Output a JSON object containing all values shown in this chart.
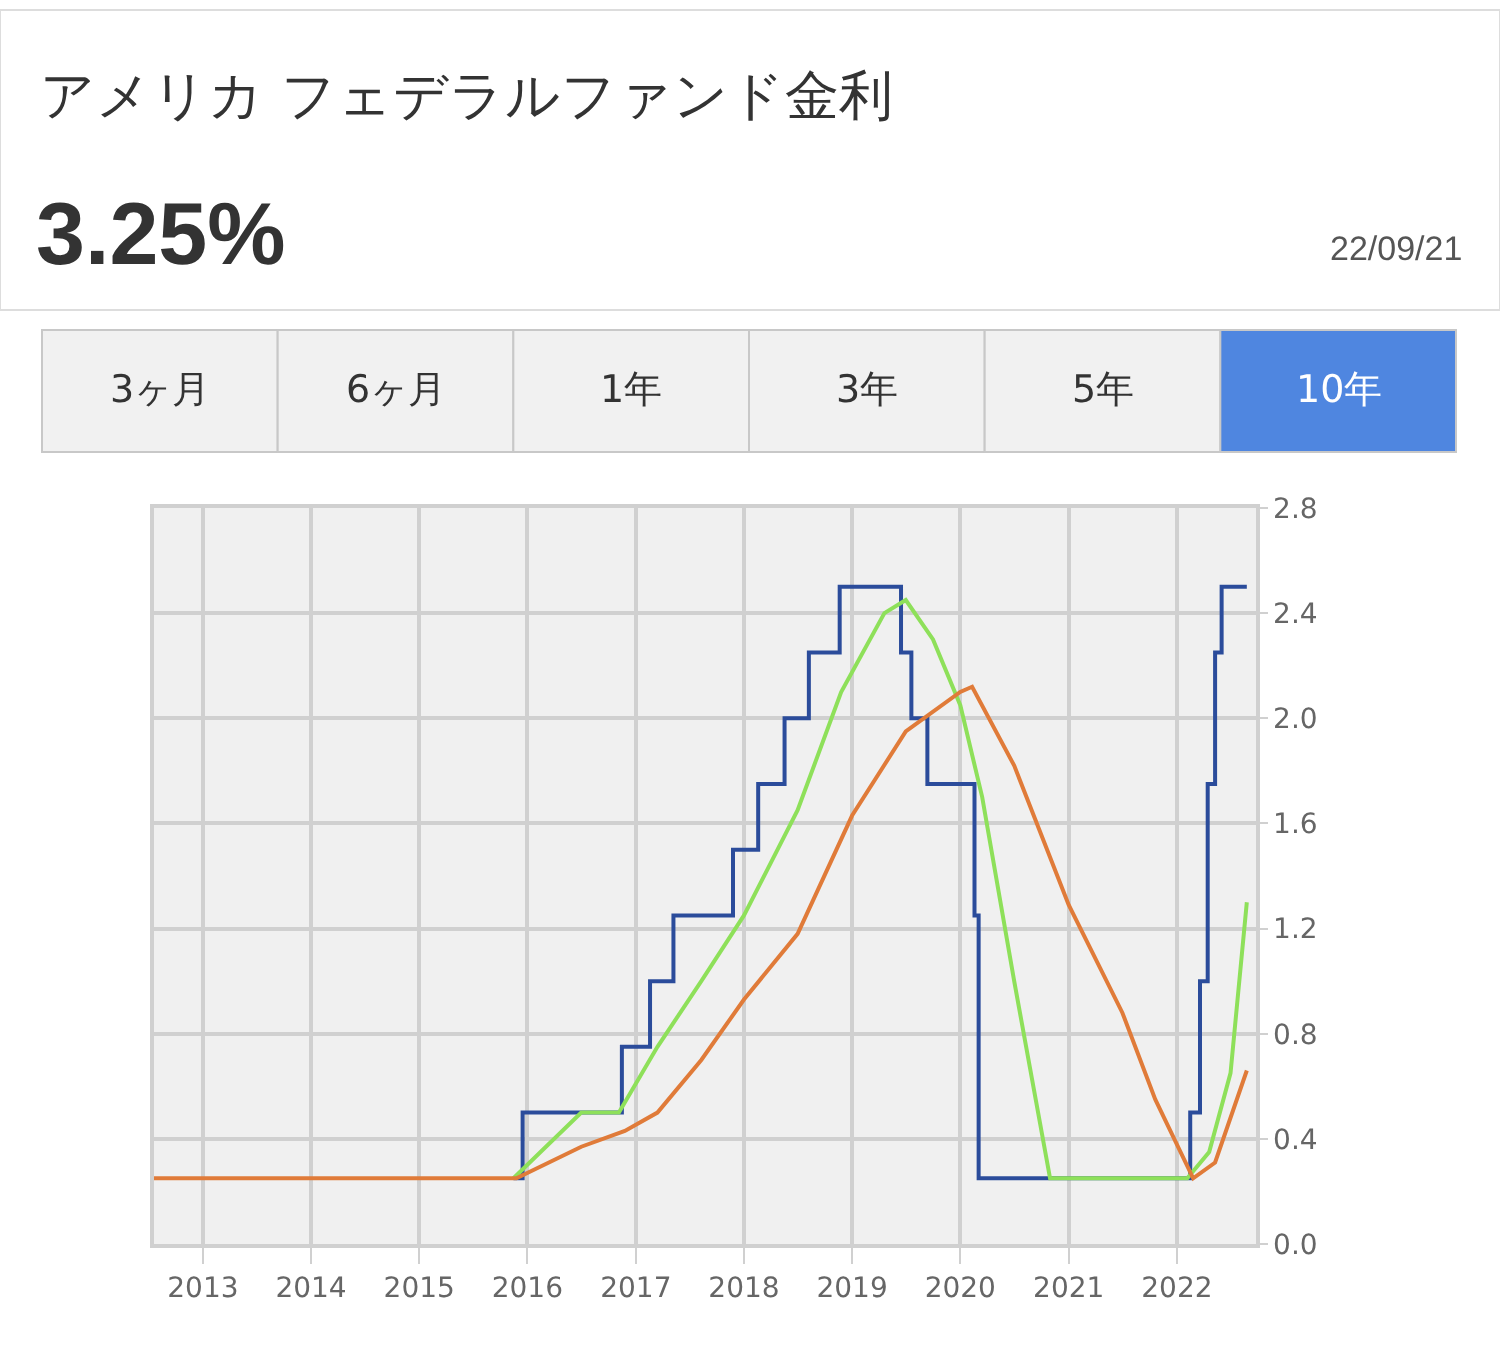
{
  "chart_data": {
    "type": "line",
    "title": "アメリカ フェデラルファンド金利",
    "subtitle": "3.25%",
    "annotations": [
      "22/09/21",
      "3ヶ月",
      "6ヶ月",
      "1年",
      "3年",
      "5年",
      "10年"
    ],
    "xlim": [
      "2012-07-20",
      "2022-09-25"
    ],
    "xticks": [
      {
        "value": "2013-01-01",
        "label": "2013"
      },
      {
        "value": "2014-01-01",
        "label": "2014"
      },
      {
        "value": "2015-01-01",
        "label": "2015"
      },
      {
        "value": "2016-01-01",
        "label": "2016"
      },
      {
        "value": "2017-01-01",
        "label": "2017"
      },
      {
        "value": "2018-01-01",
        "label": "2018"
      },
      {
        "value": "2019-01-01",
        "label": "2019"
      },
      {
        "value": "2020-01-01",
        "label": "2020"
      },
      {
        "value": "2021-01-01",
        "label": "2021"
      },
      {
        "value": "2022-01-01",
        "label": "2022"
      }
    ],
    "ylim": [
      0,
      2.8
    ],
    "yticks": [
      {
        "value": 0,
        "label": "0.0"
      },
      0.4,
      0.8,
      1.2,
      1.6,
      {
        "value": 2.0,
        "label": "2.0"
      },
      2.4,
      2.8
    ],
    "grid": true,
    "series": [
      {
        "type": "step",
        "color": "#2b4c9b",
        "x": [
          "2015-11-15",
          "2015-12-16",
          "2016-11-15",
          "2017-02-18",
          "2017-05-08",
          "2017-11-25",
          "2018-02-18",
          "2018-05-18",
          "2018-08-08",
          "2018-11-20",
          "2019-06-15",
          "2019-07-20",
          "2019-09-12",
          "2020-02-18",
          "2020-03-03",
          "2022-02-15",
          "2022-03-20",
          "2022-04-15",
          "2022-05-10",
          "2022-06-01",
          "2022-08-25"
        ],
        "values": [
          0.25,
          0.5,
          0.75,
          1.0,
          1.25,
          1.5,
          1.75,
          2.0,
          2.25,
          2.5,
          2.25,
          2.0,
          1.75,
          1.25,
          0.25,
          0.5,
          1.0,
          1.75,
          2.25,
          2.5,
          2.5
        ]
      },
      {
        "color": "#8ee05a",
        "x": [
          "2015-11-15",
          "2016-07-01",
          "2016-11-05",
          "2017-03-15",
          "2017-08-10",
          "2018-01-01",
          "2018-07-01",
          "2018-11-25",
          "2019-04-20",
          "2019-07-01",
          "2019-10-01",
          "2020-01-01",
          "2020-03-15",
          "2020-07-01",
          "2020-10-30",
          "2022-02-05",
          "2022-04-20",
          "2022-07-01",
          "2022-08-25"
        ],
        "values": [
          0.25,
          0.5,
          0.5,
          0.75,
          1.0,
          1.25,
          1.65,
          2.1,
          2.4,
          2.45,
          2.3,
          2.05,
          1.7,
          1.0,
          0.25,
          0.25,
          0.35,
          0.65,
          1.3
        ]
      },
      {
        "color": "#e07b39",
        "x": [
          "2012-07-20",
          "2015-11-25",
          "2016-07-01",
          "2016-11-25",
          "2017-03-15",
          "2017-08-10",
          "2018-01-01",
          "2018-07-01",
          "2019-01-01",
          "2019-07-01",
          "2020-01-01",
          "2020-02-10",
          "2020-07-01",
          "2021-01-01",
          "2021-07-01",
          "2021-10-20",
          "2022-02-25",
          "2022-05-10",
          "2022-08-25"
        ],
        "values": [
          0.25,
          0.25,
          0.37,
          0.43,
          0.5,
          0.7,
          0.93,
          1.18,
          1.63,
          1.95,
          2.1,
          2.12,
          1.82,
          1.29,
          0.88,
          0.55,
          0.25,
          0.31,
          0.66
        ]
      }
    ]
  }
}
